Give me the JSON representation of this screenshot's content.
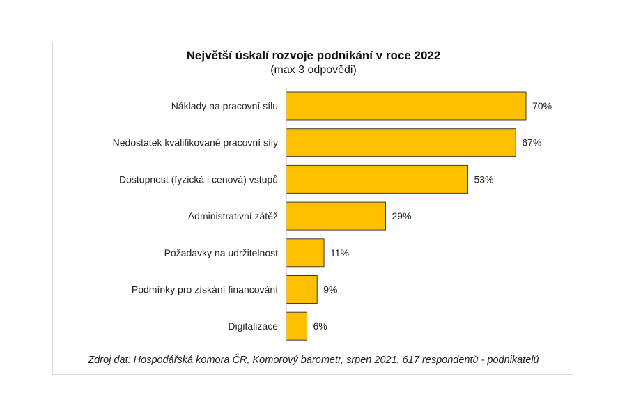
{
  "chart_data": {
    "type": "bar",
    "orientation": "horizontal",
    "title": "Největší úskalí rozvoje podnikání v roce 2022",
    "subtitle": "(max 3 odpovědi)",
    "categories": [
      "Náklady na pracovní sílu",
      "Nedostatek kvalifikované pracovní síly",
      "Dostupnost (fyzická i cenová) vstupů",
      "Administrativní zátěž",
      "Požadavky na udržitelnost",
      "Podmínky pro získání financování",
      "Digitalizace"
    ],
    "values": [
      70,
      67,
      53,
      29,
      11,
      9,
      6
    ],
    "data_labels": [
      "70%",
      "67%",
      "53%",
      "29%",
      "11%",
      "9%",
      "6%"
    ],
    "unit": "%",
    "xlim": [
      0,
      70
    ],
    "grid": false,
    "legend": "none",
    "bar_color": "#FFC000",
    "bar_edge_color": "#3a3a3a",
    "source": "Zdroj dat: Hospodářská komora ČR, Komorový barometr, srpen 2021, 617 respondentů - podnikatelů"
  }
}
